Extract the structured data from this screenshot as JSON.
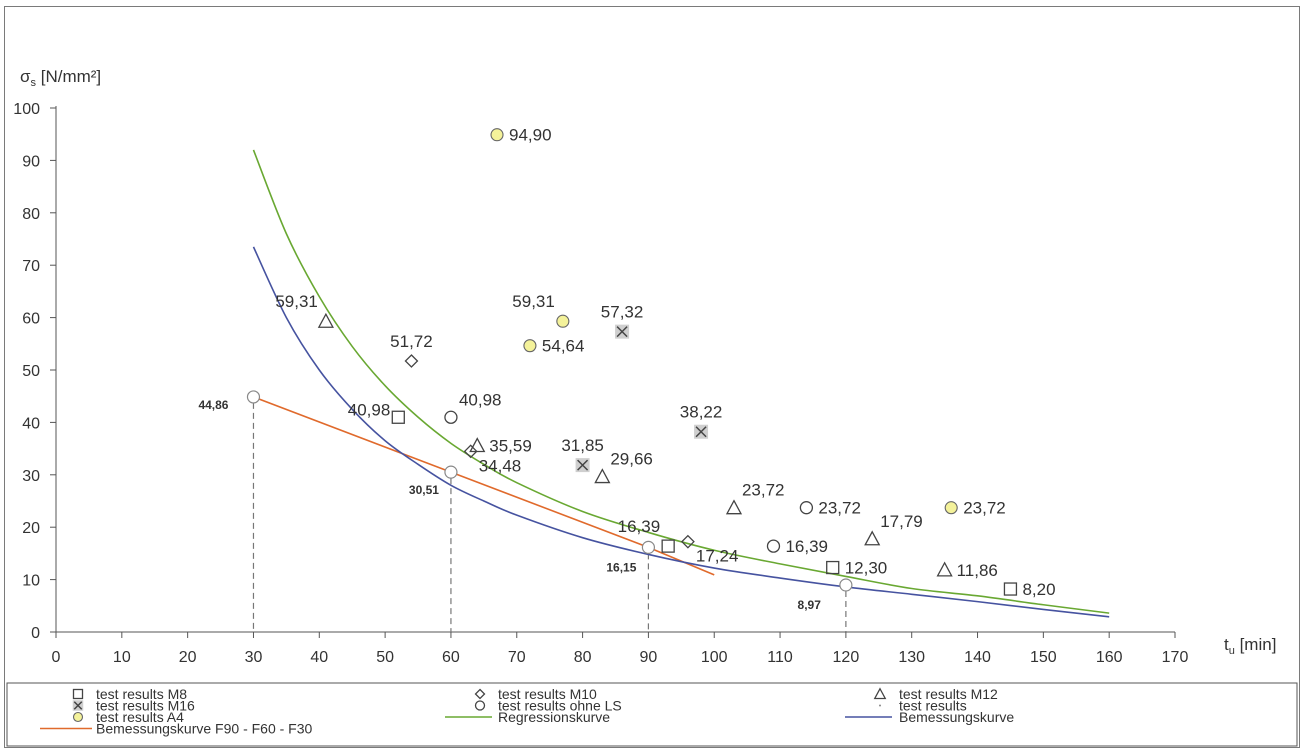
{
  "chart_data": {
    "type": "scatter",
    "title": "",
    "ylabel_main": "σ",
    "ylabel_sub": "s",
    "ylabel_unit": " [N/mm²]",
    "xlabel_main": "t",
    "xlabel_sub": "u",
    "xlabel_unit": " [min]",
    "xlim": [
      0,
      170
    ],
    "ylim": [
      0,
      100
    ],
    "xticks": [
      0,
      10,
      20,
      30,
      40,
      50,
      60,
      70,
      80,
      90,
      100,
      110,
      120,
      130,
      140,
      150,
      160,
      170
    ],
    "yticks": [
      0,
      10,
      20,
      30,
      40,
      50,
      60,
      70,
      80,
      90,
      100
    ],
    "grid": false,
    "legend_position": "bottom",
    "series": [
      {
        "name": "test results M8",
        "marker": "square",
        "points": [
          {
            "x": 52,
            "y": 40.98,
            "label": "40,98",
            "lpos": "left"
          },
          {
            "x": 93,
            "y": 16.39,
            "label": "16,39",
            "lpos": "above-left"
          },
          {
            "x": 118,
            "y": 12.3,
            "label": "12,30",
            "lpos": "right"
          },
          {
            "x": 145,
            "y": 8.2,
            "label": "8,20",
            "lpos": "right"
          }
        ]
      },
      {
        "name": "test results M10",
        "marker": "diamond",
        "points": [
          {
            "x": 54,
            "y": 51.72,
            "label": "51,72",
            "lpos": "above"
          },
          {
            "x": 63,
            "y": 34.48,
            "label": "34,48",
            "lpos": "below-right"
          },
          {
            "x": 96,
            "y": 17.24,
            "label": "17,24",
            "lpos": "below-right"
          }
        ]
      },
      {
        "name": "test results M12",
        "marker": "triangle",
        "points": [
          {
            "x": 41,
            "y": 59.31,
            "label": "59,31",
            "lpos": "above-left"
          },
          {
            "x": 64,
            "y": 35.59,
            "label": "35,59",
            "lpos": "right"
          },
          {
            "x": 83,
            "y": 29.66,
            "label": "29,66",
            "lpos": "above-right"
          },
          {
            "x": 103,
            "y": 23.72,
            "label": "23,72",
            "lpos": "above-right"
          },
          {
            "x": 124,
            "y": 17.79,
            "label": "17,79",
            "lpos": "above-right"
          },
          {
            "x": 135,
            "y": 11.86,
            "label": "11,86",
            "lpos": "right"
          }
        ]
      },
      {
        "name": "test results M16",
        "marker": "xbox",
        "points": [
          {
            "x": 80,
            "y": 31.85,
            "label": "31,85",
            "lpos": "above"
          },
          {
            "x": 86,
            "y": 57.32,
            "label": "57,32",
            "lpos": "above"
          },
          {
            "x": 98,
            "y": 38.22,
            "label": "38,22",
            "lpos": "above"
          }
        ]
      },
      {
        "name": "test results ohne LS",
        "marker": "circle",
        "points": [
          {
            "x": 60,
            "y": 40.98,
            "label": "40,98",
            "lpos": "above-right"
          },
          {
            "x": 109,
            "y": 16.39,
            "label": "16,39",
            "lpos": "right"
          },
          {
            "x": 114,
            "y": 23.72,
            "label": "23,72",
            "lpos": "right"
          }
        ]
      },
      {
        "name": "test results A4",
        "marker": "yellowcircle",
        "points": [
          {
            "x": 67,
            "y": 94.9,
            "label": "94,90",
            "lpos": "right"
          },
          {
            "x": 77,
            "y": 59.31,
            "label": "59,31",
            "lpos": "above-left"
          },
          {
            "x": 72,
            "y": 54.64,
            "label": "54,64",
            "lpos": "right"
          },
          {
            "x": 136,
            "y": 23.72,
            "label": "23,72",
            "lpos": "right"
          }
        ]
      },
      {
        "name": "test results",
        "marker": "none",
        "points": [
          {
            "x": 30,
            "y": 44.86,
            "label": "44,86"
          },
          {
            "x": 60,
            "y": 30.51,
            "label": "30,51"
          },
          {
            "x": 90,
            "y": 16.15,
            "label": "16,15"
          },
          {
            "x": 120,
            "y": 8.97,
            "label": "8,97"
          }
        ]
      }
    ],
    "lines": [
      {
        "name": "Bemessungskurve F90 - F60 - F30",
        "color": "#e06a2c",
        "x": [
          30,
          60,
          90,
          100
        ],
        "y": [
          44.86,
          30.51,
          16.15,
          10.9
        ]
      },
      {
        "name": "Regressionskurve",
        "color": "#69a832",
        "x": [
          30,
          35,
          40,
          45,
          50,
          55,
          60,
          65,
          70,
          80,
          90,
          100,
          110,
          120,
          130,
          140,
          150,
          160
        ],
        "y": [
          92,
          76,
          64,
          54.5,
          47,
          41,
          36,
          32,
          28.5,
          23,
          19,
          15.6,
          13,
          10.6,
          8.3,
          6.9,
          5.2,
          3.6
        ]
      },
      {
        "name": "Bemessungskurve",
        "color": "#4653a0",
        "x": [
          30,
          35,
          40,
          45,
          50,
          55,
          60,
          65,
          70,
          80,
          90,
          100,
          110,
          120,
          130,
          140,
          150,
          160
        ],
        "y": [
          73.5,
          60,
          50,
          42.5,
          36.5,
          32,
          28,
          25,
          22.3,
          18,
          14.8,
          12.2,
          10.3,
          8.6,
          7.2,
          5.8,
          4.3,
          2.9
        ]
      }
    ],
    "legend": [
      {
        "label": "test results M8",
        "marker": "square"
      },
      {
        "label": "test results M10",
        "marker": "diamond"
      },
      {
        "label": "test results M12",
        "marker": "triangle"
      },
      {
        "label": "test results M16",
        "marker": "xbox"
      },
      {
        "label": "test results ohne LS",
        "marker": "circle"
      },
      {
        "label": "test results",
        "marker": "dot"
      },
      {
        "label": "test results A4",
        "marker": "yellowcircle"
      },
      {
        "label": "Regressionskurve",
        "marker": "line",
        "color": "#69a832"
      },
      {
        "label": "Bemessungskurve",
        "marker": "line",
        "color": "#4653a0"
      },
      {
        "label": "Bemessungskurve F90 - F60 - F30",
        "marker": "line",
        "color": "#e06a2c"
      }
    ]
  }
}
